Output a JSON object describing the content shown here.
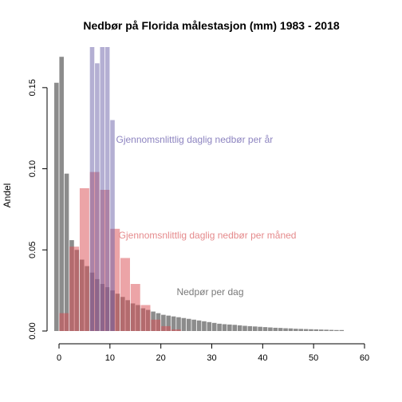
{
  "chart_data": {
    "type": "bar",
    "title": "Nedbør på Florida målestasjon (mm) 1983 - 2018",
    "xlabel": "",
    "ylabel": "Andel",
    "xlim": [
      -1,
      60
    ],
    "ylim": [
      0,
      0.175
    ],
    "x_ticks": [
      0,
      10,
      20,
      30,
      40,
      50,
      60
    ],
    "y_ticks": [
      0.0,
      0.05,
      0.1,
      0.15
    ],
    "y_tick_labels": [
      "0.00",
      "0.05",
      "0.10",
      "0.15"
    ],
    "grid": false,
    "series": [
      {
        "label": "Nedpør per dag",
        "color": "#7f7f7f",
        "opacity": 0.9,
        "bin_width": 1,
        "bins": [
          [
            -1,
            0.153
          ],
          [
            0,
            0.169
          ],
          [
            1,
            0.097
          ],
          [
            2,
            0.056
          ],
          [
            3,
            0.05
          ],
          [
            4,
            0.044
          ],
          [
            5,
            0.04
          ],
          [
            6,
            0.036
          ],
          [
            7,
            0.032
          ],
          [
            8,
            0.029
          ],
          [
            9,
            0.027
          ],
          [
            10,
            0.025
          ],
          [
            11,
            0.023
          ],
          [
            12,
            0.021
          ],
          [
            13,
            0.019
          ],
          [
            14,
            0.017
          ],
          [
            15,
            0.016
          ],
          [
            16,
            0.014
          ],
          [
            17,
            0.013
          ],
          [
            18,
            0.012
          ],
          [
            19,
            0.011
          ],
          [
            20,
            0.01
          ],
          [
            21,
            0.0095
          ],
          [
            22,
            0.009
          ],
          [
            23,
            0.0085
          ],
          [
            24,
            0.008
          ],
          [
            25,
            0.0075
          ],
          [
            26,
            0.007
          ],
          [
            27,
            0.0065
          ],
          [
            28,
            0.006
          ],
          [
            29,
            0.0055
          ],
          [
            30,
            0.005
          ],
          [
            31,
            0.0045
          ],
          [
            32,
            0.0042
          ],
          [
            33,
            0.004
          ],
          [
            34,
            0.0038
          ],
          [
            35,
            0.0035
          ],
          [
            36,
            0.0032
          ],
          [
            37,
            0.003
          ],
          [
            38,
            0.0028
          ],
          [
            39,
            0.0026
          ],
          [
            40,
            0.0024
          ],
          [
            41,
            0.0022
          ],
          [
            42,
            0.002
          ],
          [
            43,
            0.0019
          ],
          [
            44,
            0.0017
          ],
          [
            45,
            0.0016
          ],
          [
            46,
            0.0014
          ],
          [
            47,
            0.0013
          ],
          [
            48,
            0.0012
          ],
          [
            49,
            0.0011
          ],
          [
            50,
            0.001
          ],
          [
            51,
            0.0009
          ],
          [
            52,
            0.0008
          ],
          [
            53,
            0.0007
          ],
          [
            54,
            0.0006
          ],
          [
            55,
            0.0006
          ]
        ]
      },
      {
        "label": "Gjennomsnlittlig daglig nedbør per måned",
        "color": "#d94a4f",
        "opacity": 0.5,
        "bin_width": 2,
        "bins": [
          [
            0,
            0.011
          ],
          [
            2,
            0.052
          ],
          [
            4,
            0.088
          ],
          [
            6,
            0.098
          ],
          [
            8,
            0.087
          ],
          [
            10,
            0.063
          ],
          [
            12,
            0.045
          ],
          [
            14,
            0.029
          ],
          [
            16,
            0.016
          ],
          [
            18,
            0.007
          ],
          [
            20,
            0.003
          ],
          [
            22,
            0.001
          ]
        ]
      },
      {
        "label": "Gjennomsnlittlig daglig nedbør per år",
        "color": "#6a5fa8",
        "opacity": 0.5,
        "bin_width": 1,
        "bins": [
          [
            6,
            0.175
          ],
          [
            7,
            0.165
          ],
          [
            8,
            0.175
          ],
          [
            9,
            0.175
          ],
          [
            10,
            0.13
          ]
        ]
      }
    ],
    "annotations": [
      {
        "text": "Gjennomsnlittlig daglig nedbør per år",
        "x": 11.2,
        "y": 0.118,
        "color": "#8d84c0"
      },
      {
        "text": "Gjennomsnlittlig daglig nedbør per måned",
        "x": 11.7,
        "y": 0.059,
        "color": "#e58a8c"
      },
      {
        "text": "Nedpør per dag",
        "x": 23.1,
        "y": 0.024,
        "color": "#7a7a7a"
      }
    ]
  }
}
